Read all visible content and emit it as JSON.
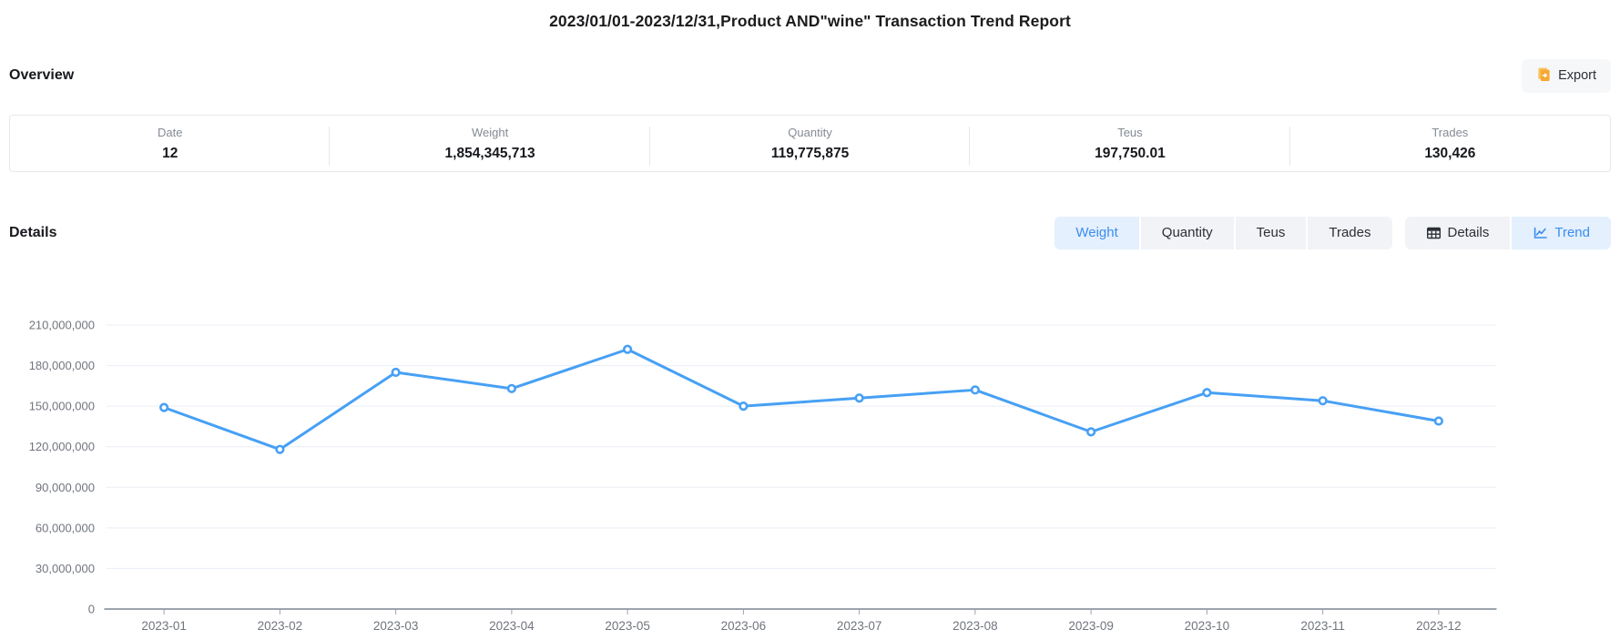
{
  "title": "2023/01/01-2023/12/31,Product AND\"wine\" Transaction Trend Report",
  "overview": {
    "heading": "Overview",
    "export_label": "Export",
    "stats": [
      {
        "label": "Date",
        "value": "12"
      },
      {
        "label": "Weight",
        "value": "1,854,345,713"
      },
      {
        "label": "Quantity",
        "value": "119,775,875"
      },
      {
        "label": "Teus",
        "value": "197,750.01"
      },
      {
        "label": "Trades",
        "value": "130,426"
      }
    ]
  },
  "details": {
    "heading": "Details",
    "metric_tabs": [
      {
        "label": "Weight",
        "active": true
      },
      {
        "label": "Quantity",
        "active": false
      },
      {
        "label": "Teus",
        "active": false
      },
      {
        "label": "Trades",
        "active": false
      }
    ],
    "view_tabs": [
      {
        "label": "Details",
        "icon": "table-icon",
        "active": false
      },
      {
        "label": "Trend",
        "icon": "line-chart-icon",
        "active": true
      }
    ]
  },
  "chart_data": {
    "type": "line",
    "title": "",
    "xlabel": "",
    "ylabel": "",
    "grid": true,
    "legend_position": "none",
    "categories": [
      "2023-01",
      "2023-02",
      "2023-03",
      "2023-04",
      "2023-05",
      "2023-06",
      "2023-07",
      "2023-08",
      "2023-09",
      "2023-10",
      "2023-11",
      "2023-12"
    ],
    "series": [
      {
        "name": "Weight",
        "values": [
          149000000,
          118000000,
          175000000,
          163000000,
          192000000,
          150000000,
          156000000,
          162000000,
          131000000,
          160000000,
          154000000,
          139000000
        ]
      }
    ],
    "ylim": [
      0,
      210000000
    ],
    "yticks": [
      0,
      30000000,
      60000000,
      90000000,
      120000000,
      150000000,
      180000000,
      210000000
    ],
    "line_color": "#47a0f4"
  },
  "colors": {
    "accent_blue": "#3b8cf0",
    "active_tab_bg": "#e4f0fd",
    "inactive_tab_bg": "#f2f3f6",
    "export_icon_orange": "#f6a832",
    "gridline": "#e9eef6",
    "axis_line": "#9da3ab",
    "axis_text": "#70757d",
    "card_border": "#e6e8ec"
  }
}
